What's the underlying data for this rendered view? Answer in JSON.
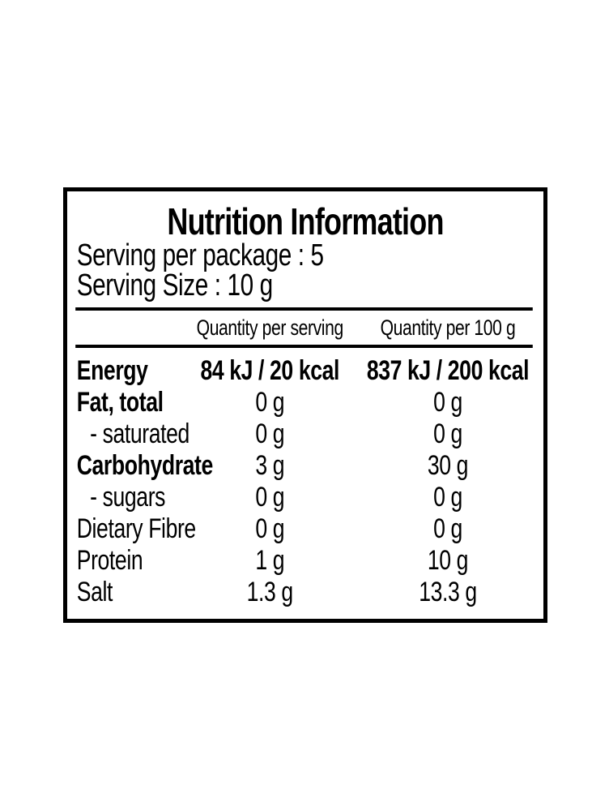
{
  "label": {
    "title": "Nutrition Information",
    "serving_per_package": "Serving per package : 5",
    "serving_size": "Serving Size : 10 g",
    "columns": {
      "per_serving": "Quantity per serving",
      "per_100g": "Quantity per 100 g"
    },
    "rows": [
      {
        "name": "Energy",
        "per_serving": "84 kJ / 20 kcal",
        "per_100g": "837 kJ / 200 kcal"
      },
      {
        "name": "Fat, total",
        "per_serving": "0 g",
        "per_100g": "0 g"
      },
      {
        "name": "- saturated",
        "per_serving": "0 g",
        "per_100g": "0 g"
      },
      {
        "name": "Carbohydrate",
        "per_serving": "3 g",
        "per_100g": "30 g"
      },
      {
        "name": "- sugars",
        "per_serving": "0 g",
        "per_100g": "0 g"
      },
      {
        "name": "Dietary Fibre",
        "per_serving": "0 g",
        "per_100g": "0 g"
      },
      {
        "name": "Protein",
        "per_serving": "1 g",
        "per_100g": "10 g"
      },
      {
        "name": "Salt",
        "per_serving": "1.3 g",
        "per_100g": "13.3 g"
      }
    ],
    "colors": {
      "text": "#000000",
      "background": "#ffffff",
      "border": "#000000"
    }
  }
}
